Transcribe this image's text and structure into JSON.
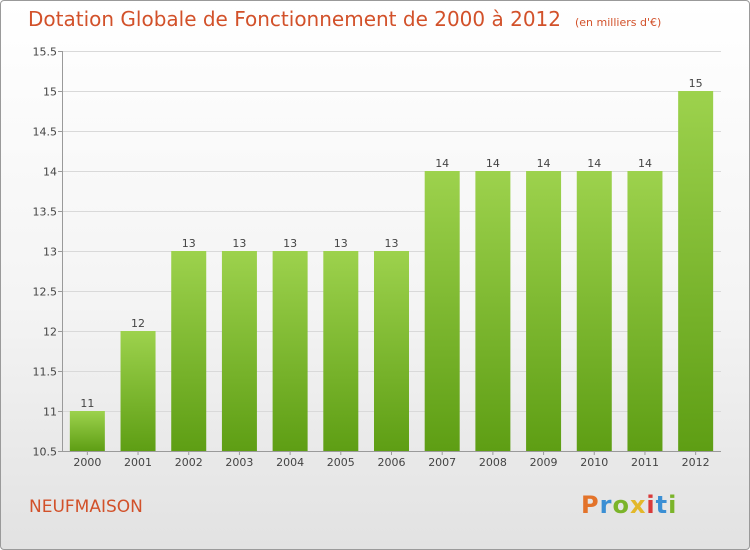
{
  "title": "Dotation Globale de Fonctionnement de 2000 à 2012",
  "subtitle": "(en milliers d'€)",
  "commune": "NEUFMAISON",
  "brand": "Proxiti",
  "colors": {
    "title": "#d2512a",
    "bar_top": "#9dd24d",
    "bar_bottom": "#5e9e14",
    "grid": "#d9d9d9",
    "axis": "#9a9a9a"
  },
  "chart_data": {
    "type": "bar",
    "categories": [
      "2000",
      "2001",
      "2002",
      "2003",
      "2004",
      "2005",
      "2006",
      "2007",
      "2008",
      "2009",
      "2010",
      "2011",
      "2012"
    ],
    "values": [
      11,
      12,
      13,
      13,
      13,
      13,
      13,
      14,
      14,
      14,
      14,
      14,
      15
    ],
    "data_labels": [
      "11",
      "12",
      "13",
      "13",
      "13",
      "13",
      "13",
      "14",
      "14",
      "14",
      "14",
      "14",
      "15"
    ],
    "y_ticks": [
      10.5,
      11,
      11.5,
      12,
      12.5,
      13,
      13.5,
      14,
      14.5,
      15,
      15.5
    ],
    "y_tick_labels": [
      "10.5",
      "11",
      "11.5",
      "12",
      "12.5",
      "13",
      "13.5",
      "14",
      "14.5",
      "15",
      "15.5"
    ],
    "ylim": [
      10.5,
      15.5
    ],
    "xlabel": "",
    "ylabel": "",
    "grid": true
  }
}
